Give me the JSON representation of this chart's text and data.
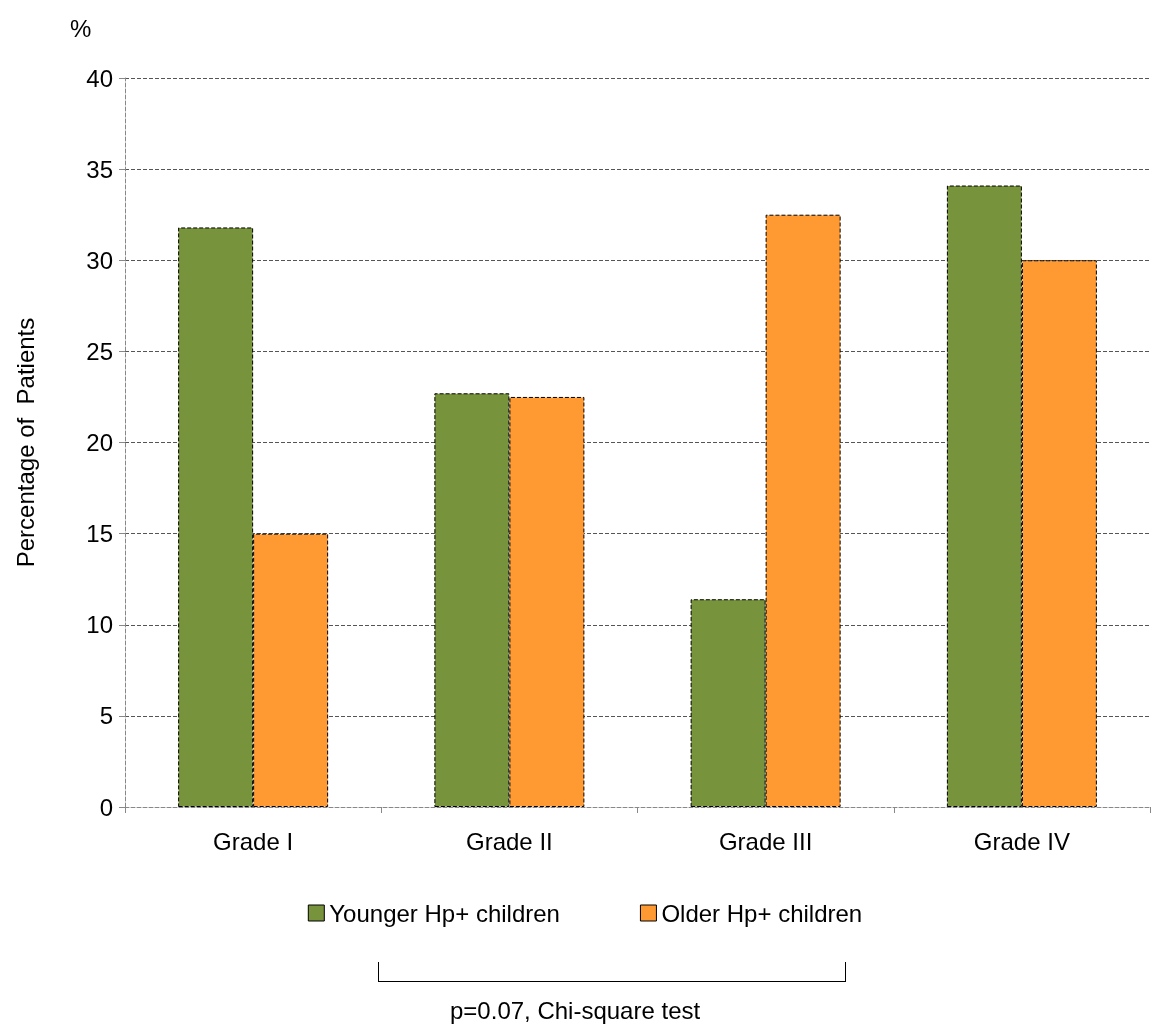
{
  "chart_data": {
    "type": "bar",
    "ylabel": "Percentage of  Patients",
    "categories": [
      "Grade I",
      "Grade II",
      "Grade III",
      "Grade IV"
    ],
    "series": [
      {
        "name": "Younger Hp+ children",
        "color": "#77933c",
        "values": [
          31.8,
          22.7,
          11.4,
          34.1
        ]
      },
      {
        "name": "Older Hp+ children",
        "color": "#ff9a33",
        "values": [
          15.0,
          22.5,
          32.5,
          30.0
        ]
      }
    ],
    "ylim": [
      0,
      40
    ],
    "yticks": [
      0,
      5,
      10,
      15,
      20,
      25,
      30,
      35,
      40
    ],
    "grid": "y",
    "legend": "bottom",
    "annotations": [
      "%",
      "p=0.07, Chi-square test"
    ]
  }
}
